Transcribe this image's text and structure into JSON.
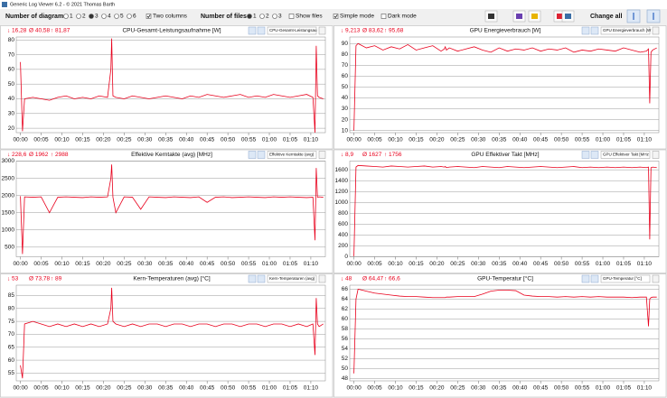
{
  "window_title": "Generic Log Viewer 6.2 - © 2021 Thomas Barth",
  "toolbar": {
    "diagrams_label": "Number of diagrams",
    "diagram_options": [
      "1",
      "2",
      "3",
      "4",
      "5",
      "6"
    ],
    "two_columns": "Two columns",
    "files_label": "Number of files",
    "file_options": [
      "1",
      "2",
      "3"
    ],
    "show_files": "Show files",
    "simple_mode": "Simple mode",
    "dark_mode": "Dark mode",
    "change_all": "Change all"
  },
  "chart_data": [
    {
      "type": "line",
      "title": "CPU-Gesamt-Leistungsaufnahme [W]",
      "selector": "CPU-Gesamt-Leistungsau",
      "stats": [
        "↓ 16,28",
        "Ø 40,58",
        "↑ 81,87"
      ],
      "color": "#e8001c",
      "grid": true,
      "x": [
        0,
        0.5,
        1,
        3,
        5,
        7,
        9,
        11,
        13,
        15,
        17,
        19,
        21,
        21.8,
        22,
        22.3,
        23,
        25,
        27,
        29,
        31,
        33,
        35,
        37,
        39,
        41,
        43,
        45,
        47,
        49,
        51,
        53,
        55,
        57,
        59,
        61,
        63,
        65,
        67,
        69,
        70.5,
        71,
        71.3,
        71.6,
        72,
        73
      ],
      "values": [
        65,
        18,
        40,
        41,
        40,
        39,
        41,
        42,
        40,
        41,
        40,
        42,
        41,
        60,
        81,
        42,
        41,
        40,
        42,
        41,
        40,
        41,
        42,
        41,
        40,
        42,
        41,
        43,
        42,
        41,
        42,
        43,
        41,
        42,
        41,
        43,
        42,
        41,
        42,
        43,
        41,
        17,
        76,
        42,
        41,
        40
      ],
      "xlim": [
        -1,
        73.5
      ],
      "ylim": [
        17,
        82
      ],
      "yticks": [
        20,
        30,
        40,
        50,
        60,
        70,
        80
      ],
      "xticks": [
        {
          "value": 0,
          "label": "00:00"
        },
        {
          "value": 5,
          "label": "00:05"
        },
        {
          "value": 10,
          "label": "00:10"
        },
        {
          "value": 15,
          "label": "00:15"
        },
        {
          "value": 20,
          "label": "00:20"
        },
        {
          "value": 25,
          "label": "00:25"
        },
        {
          "value": 30,
          "label": "00:30"
        },
        {
          "value": 35,
          "label": "00:35"
        },
        {
          "value": 40,
          "label": "00:40"
        },
        {
          "value": 45,
          "label": "00:45"
        },
        {
          "value": 50,
          "label": "00:50"
        },
        {
          "value": 55,
          "label": "00:55"
        },
        {
          "value": 60,
          "label": "01:00"
        },
        {
          "value": 65,
          "label": "01:05"
        },
        {
          "value": 70,
          "label": "01:10"
        }
      ]
    },
    {
      "type": "line",
      "title": "GPU Energieverbrauch [W]",
      "selector": "GPU Energieverbrauch [W",
      "stats": [
        "↓ 9,213",
        "Ø 83,62",
        "↑ 95,68"
      ],
      "color": "#e8001c",
      "grid": true,
      "x": [
        0,
        0.5,
        1,
        3,
        5,
        7,
        9,
        11,
        13,
        15,
        17,
        19,
        21,
        21.8,
        22,
        22.3,
        23,
        25,
        27,
        29,
        31,
        33,
        35,
        37,
        39,
        41,
        43,
        45,
        47,
        49,
        51,
        53,
        55,
        57,
        59,
        61,
        63,
        65,
        67,
        69,
        70.5,
        71,
        71.3,
        71.6,
        72,
        73
      ],
      "values": [
        10,
        88,
        90,
        86,
        88,
        84,
        87,
        85,
        89,
        84,
        86,
        88,
        83,
        85,
        87,
        84,
        86,
        83,
        85,
        87,
        84,
        82,
        86,
        83,
        85,
        84,
        86,
        83,
        85,
        84,
        86,
        82,
        84,
        83,
        85,
        84,
        83,
        86,
        84,
        82,
        83,
        85,
        35,
        82,
        84,
        86
      ],
      "xlim": [
        -1,
        73.5
      ],
      "ylim": [
        8,
        96
      ],
      "yticks": [
        10,
        20,
        30,
        40,
        50,
        60,
        70,
        80,
        90
      ],
      "xticks": [
        {
          "value": 0,
          "label": "00:00"
        },
        {
          "value": 5,
          "label": "00:05"
        },
        {
          "value": 10,
          "label": "00:10"
        },
        {
          "value": 15,
          "label": "00:15"
        },
        {
          "value": 20,
          "label": "00:20"
        },
        {
          "value": 25,
          "label": "00:25"
        },
        {
          "value": 30,
          "label": "00:30"
        },
        {
          "value": 35,
          "label": "00:35"
        },
        {
          "value": 40,
          "label": "00:40"
        },
        {
          "value": 45,
          "label": "00:45"
        },
        {
          "value": 50,
          "label": "00:50"
        },
        {
          "value": 55,
          "label": "00:55"
        },
        {
          "value": 60,
          "label": "01:00"
        },
        {
          "value": 65,
          "label": "01:05"
        },
        {
          "value": 70,
          "label": "01:10"
        }
      ]
    },
    {
      "type": "line",
      "title": "Effektive Kerntakte (avg) [MHz]",
      "selector": "Effektive Kerntakte (avg)",
      "stats": [
        "↓ 228,6",
        "Ø 1962",
        "↑ 2988"
      ],
      "color": "#e8001c",
      "grid": true,
      "x": [
        0,
        0.5,
        1,
        3,
        5,
        7,
        9,
        11,
        13,
        15,
        17,
        19,
        21,
        21.8,
        22,
        22.3,
        23,
        25,
        27,
        29,
        31,
        33,
        35,
        37,
        39,
        41,
        43,
        45,
        47,
        49,
        51,
        53,
        55,
        57,
        59,
        61,
        63,
        65,
        67,
        69,
        70.5,
        71,
        71.3,
        71.6,
        72,
        73
      ],
      "values": [
        1980,
        300,
        1960,
        1950,
        1960,
        1500,
        1950,
        1960,
        1950,
        1940,
        1960,
        1950,
        1960,
        2500,
        2900,
        1950,
        1500,
        1960,
        1950,
        1600,
        1960,
        1950,
        1940,
        1960,
        1950,
        1940,
        1960,
        1800,
        1950,
        1960,
        1940,
        1950,
        1960,
        1950,
        1940,
        1960,
        1950,
        1960,
        1950,
        1940,
        1950,
        700,
        2800,
        1950,
        1960,
        1950
      ],
      "xlim": [
        -1,
        73.5
      ],
      "ylim": [
        220,
        3000
      ],
      "yticks": [
        500,
        1000,
        1500,
        2000,
        2500,
        3000
      ],
      "xticks": [
        {
          "value": 0,
          "label": "00:00"
        },
        {
          "value": 5,
          "label": "00:05"
        },
        {
          "value": 10,
          "label": "00:10"
        },
        {
          "value": 15,
          "label": "00:15"
        },
        {
          "value": 20,
          "label": "00:20"
        },
        {
          "value": 25,
          "label": "00:25"
        },
        {
          "value": 30,
          "label": "00:30"
        },
        {
          "value": 35,
          "label": "00:35"
        },
        {
          "value": 40,
          "label": "00:40"
        },
        {
          "value": 45,
          "label": "00:45"
        },
        {
          "value": 50,
          "label": "00:50"
        },
        {
          "value": 55,
          "label": "00:55"
        },
        {
          "value": 60,
          "label": "01:00"
        },
        {
          "value": 65,
          "label": "01:05"
        },
        {
          "value": 70,
          "label": "01:10"
        }
      ]
    },
    {
      "type": "line",
      "title": "GPU Effektiver Takt [MHz]",
      "selector": "GPU Effektiver Takt [MHz",
      "stats": [
        "↓ 8,9",
        "Ø 1627",
        "↑ 1756"
      ],
      "color": "#e8001c",
      "grid": true,
      "x": [
        0,
        0.5,
        1,
        3,
        5,
        7,
        9,
        11,
        13,
        15,
        17,
        19,
        21,
        21.8,
        22,
        22.3,
        23,
        25,
        27,
        29,
        31,
        33,
        35,
        37,
        39,
        41,
        43,
        45,
        47,
        49,
        51,
        53,
        55,
        57,
        59,
        61,
        63,
        65,
        67,
        69,
        70.5,
        71,
        71.3,
        71.6,
        72,
        73
      ],
      "values": [
        10,
        1650,
        1680,
        1670,
        1660,
        1650,
        1670,
        1660,
        1650,
        1660,
        1670,
        1650,
        1660,
        1650,
        1660,
        1640,
        1650,
        1660,
        1650,
        1640,
        1660,
        1650,
        1640,
        1660,
        1650,
        1640,
        1650,
        1660,
        1650,
        1640,
        1650,
        1660,
        1640,
        1650,
        1640,
        1650,
        1640,
        1650,
        1640,
        1650,
        1640,
        1650,
        320,
        1640,
        1650,
        1640
      ],
      "xlim": [
        -1,
        73.5
      ],
      "ylim": [
        0,
        1760
      ],
      "yticks": [
        0,
        200,
        400,
        600,
        800,
        1000,
        1200,
        1400,
        1600
      ],
      "xticks": [
        {
          "value": 0,
          "label": "00:00"
        },
        {
          "value": 5,
          "label": "00:05"
        },
        {
          "value": 10,
          "label": "00:10"
        },
        {
          "value": 15,
          "label": "00:15"
        },
        {
          "value": 20,
          "label": "00:20"
        },
        {
          "value": 25,
          "label": "00:25"
        },
        {
          "value": 30,
          "label": "00:30"
        },
        {
          "value": 35,
          "label": "00:35"
        },
        {
          "value": 40,
          "label": "00:40"
        },
        {
          "value": 45,
          "label": "00:45"
        },
        {
          "value": 50,
          "label": "00:50"
        },
        {
          "value": 55,
          "label": "00:55"
        },
        {
          "value": 60,
          "label": "01:00"
        },
        {
          "value": 65,
          "label": "01:05"
        },
        {
          "value": 70,
          "label": "01:10"
        }
      ]
    },
    {
      "type": "line",
      "title": "Kern-Temperaturen (avg) [°C]",
      "selector": "Kern-Temperaturen (avg)",
      "stats": [
        "↓ 53",
        "Ø 73,78",
        "↑ 89"
      ],
      "color": "#e8001c",
      "grid": true,
      "x": [
        0,
        0.5,
        1,
        3,
        5,
        7,
        9,
        11,
        13,
        15,
        17,
        19,
        21,
        21.8,
        22,
        22.3,
        23,
        25,
        27,
        29,
        31,
        33,
        35,
        37,
        39,
        41,
        43,
        45,
        47,
        49,
        51,
        53,
        55,
        57,
        59,
        61,
        63,
        65,
        67,
        69,
        70.5,
        71,
        71.3,
        71.6,
        72,
        73
      ],
      "values": [
        58,
        53,
        74,
        75,
        74,
        73,
        74,
        73,
        74,
        73,
        74,
        73,
        74,
        80,
        88,
        75,
        74,
        73,
        74,
        73,
        74,
        74,
        73,
        74,
        74,
        73,
        74,
        74,
        73,
        74,
        74,
        73,
        74,
        74,
        73,
        74,
        74,
        73,
        74,
        73,
        74,
        62,
        84,
        74,
        73,
        74
      ],
      "xlim": [
        -1,
        73.5
      ],
      "ylim": [
        52,
        89
      ],
      "yticks": [
        55,
        60,
        65,
        70,
        75,
        80,
        85
      ],
      "xticks": [
        {
          "value": 0,
          "label": "00:00"
        },
        {
          "value": 5,
          "label": "00:05"
        },
        {
          "value": 10,
          "label": "00:10"
        },
        {
          "value": 15,
          "label": "00:15"
        },
        {
          "value": 20,
          "label": "00:20"
        },
        {
          "value": 25,
          "label": "00:25"
        },
        {
          "value": 30,
          "label": "00:30"
        },
        {
          "value": 35,
          "label": "00:35"
        },
        {
          "value": 40,
          "label": "00:40"
        },
        {
          "value": 45,
          "label": "00:45"
        },
        {
          "value": 50,
          "label": "00:50"
        },
        {
          "value": 55,
          "label": "00:55"
        },
        {
          "value": 60,
          "label": "01:00"
        },
        {
          "value": 65,
          "label": "01:05"
        },
        {
          "value": 70,
          "label": "01:10"
        }
      ]
    },
    {
      "type": "line",
      "title": "GPU-Temperatur [°C]",
      "selector": "GPU-Temperatur [°C]",
      "stats": [
        "↓ 48",
        "Ø 64,47",
        "↑ 66,6"
      ],
      "color": "#e8001c",
      "grid": true,
      "x": [
        0,
        0.5,
        1,
        3,
        5,
        7,
        9,
        11,
        13,
        15,
        17,
        19,
        21,
        21.8,
        22,
        22.3,
        23,
        25,
        27,
        29,
        31,
        33,
        35,
        37,
        39,
        41,
        43,
        45,
        47,
        49,
        51,
        53,
        55,
        57,
        59,
        61,
        63,
        65,
        67,
        69,
        70.5,
        71,
        71.3,
        71.6,
        72,
        73
      ],
      "values": [
        49,
        64,
        66,
        65.6,
        65.2,
        65,
        64.8,
        64.6,
        64.5,
        64.5,
        64.4,
        64.3,
        64.3,
        64.3,
        64.3,
        64.4,
        64.4,
        64.5,
        64.5,
        64.5,
        65,
        65.6,
        65.8,
        65.8,
        65.7,
        64.8,
        64.6,
        64.5,
        64.5,
        64.4,
        64.5,
        64.4,
        64.5,
        64.4,
        64.5,
        64.4,
        64.4,
        64.4,
        64.3,
        64.4,
        64.4,
        58.5,
        64,
        64.3,
        64.4,
        64.4
      ],
      "xlim": [
        -1,
        73.5
      ],
      "ylim": [
        47.5,
        66.8
      ],
      "yticks": [
        48,
        50,
        52,
        54,
        56,
        58,
        60,
        62,
        64,
        66
      ],
      "xticks": [
        {
          "value": 0,
          "label": "00:00"
        },
        {
          "value": 5,
          "label": "00:05"
        },
        {
          "value": 10,
          "label": "00:10"
        },
        {
          "value": 15,
          "label": "00:15"
        },
        {
          "value": 20,
          "label": "00:20"
        },
        {
          "value": 25,
          "label": "00:25"
        },
        {
          "value": 30,
          "label": "00:30"
        },
        {
          "value": 35,
          "label": "00:35"
        },
        {
          "value": 40,
          "label": "00:40"
        },
        {
          "value": 45,
          "label": "00:45"
        },
        {
          "value": 50,
          "label": "00:50"
        },
        {
          "value": 55,
          "label": "00:55"
        },
        {
          "value": 60,
          "label": "01:00"
        },
        {
          "value": 65,
          "label": "01:05"
        },
        {
          "value": 70,
          "label": "01:10"
        }
      ]
    }
  ]
}
